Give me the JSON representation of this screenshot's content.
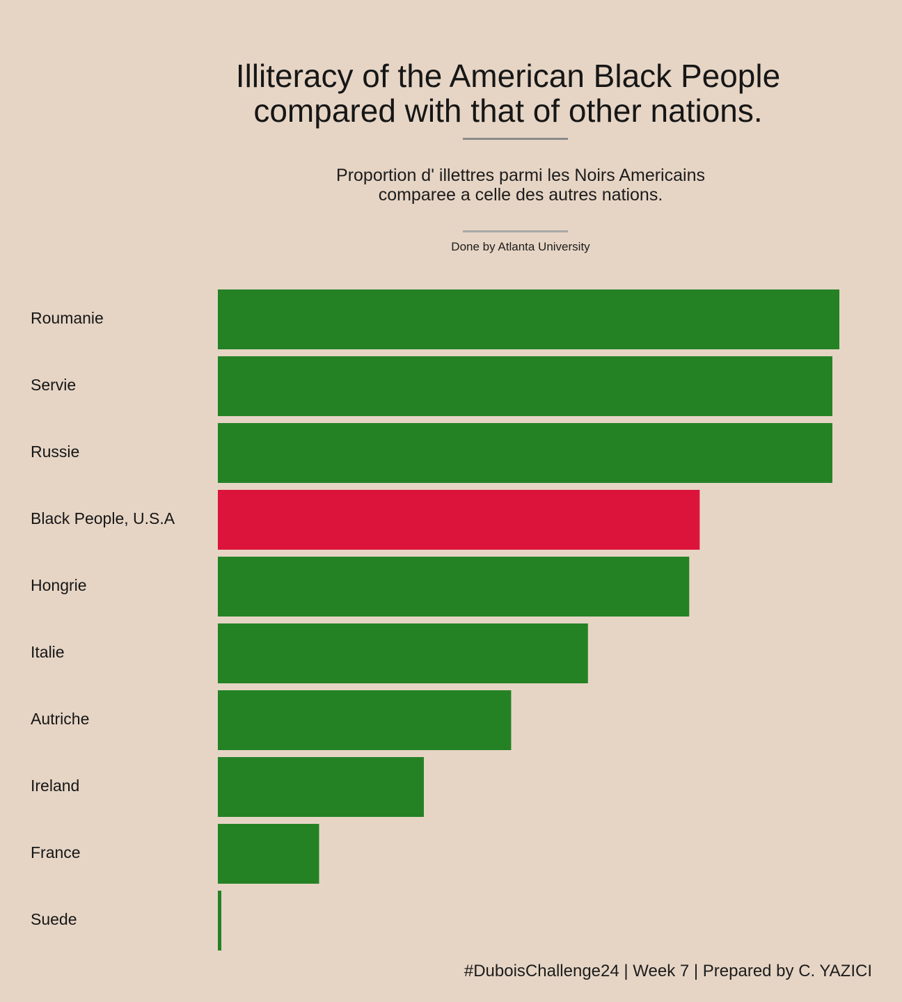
{
  "header": {
    "title_line1": "Illiteracy of the American Black People",
    "title_line2": "compared with that of other nations.",
    "subtitle_line1": "Proportion d' illettres parmi les Noirs Americains",
    "subtitle_line2": "comparee a celle des autres nations.",
    "credit": "Done by Atlanta University"
  },
  "caption": "#DuboisChallenge24 | Week 7 | Prepared by C. YAZICI",
  "colors": {
    "background": "#e6d5c5",
    "bar_default": "#248225",
    "bar_highlight": "#dc143c"
  },
  "chart_data": {
    "type": "bar",
    "orientation": "horizontal",
    "categories": [
      "Roumanie",
      "Servie",
      "Russie",
      "Black People, U.S.A",
      "Hongrie",
      "Italie",
      "Autriche",
      "Ireland",
      "France",
      "Suede"
    ],
    "values": [
      89,
      88,
      88,
      69,
      67.5,
      53,
      42,
      29.5,
      14.5,
      0.5
    ],
    "highlight": "Black People, U.S.A",
    "xlim": [
      0,
      89
    ],
    "grid": false,
    "legend": "none"
  }
}
